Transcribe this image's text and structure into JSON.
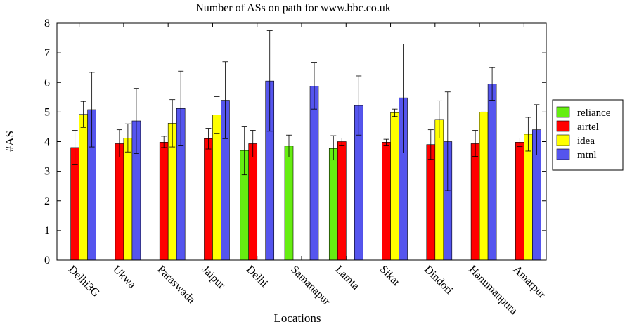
{
  "chart_data": {
    "type": "bar",
    "title": "Number of ASs on path for www.bbc.co.uk",
    "xlabel": "Locations",
    "ylabel": "#AS",
    "ylim": [
      0,
      8
    ],
    "yticks": [
      "0",
      "1",
      "2",
      "3",
      "4",
      "5",
      "6",
      "7",
      "8"
    ],
    "categories": [
      "Delhi3G",
      "Ukwa",
      "Paraswada",
      "Jaipur",
      "Delhi",
      "Samanapur",
      "Lamta",
      "Sikar",
      "Dindori",
      "Hanumanpura",
      "Amarpur"
    ],
    "legend_position": "right",
    "series": [
      {
        "name": "reliance",
        "color": "#66ee11",
        "values": [
          null,
          null,
          null,
          null,
          3.7,
          3.85,
          3.77,
          null,
          null,
          null,
          null
        ],
        "err_low": [
          null,
          null,
          null,
          null,
          2.88,
          3.48,
          3.38,
          null,
          null,
          null,
          null
        ],
        "err_high": [
          null,
          null,
          null,
          null,
          4.52,
          4.22,
          4.2,
          null,
          null,
          null,
          null
        ]
      },
      {
        "name": "airtel",
        "color": "#ff0000",
        "values": [
          3.8,
          3.93,
          3.98,
          4.1,
          3.93,
          null,
          4.0,
          3.98,
          3.9,
          3.93,
          3.98
        ],
        "err_low": [
          3.22,
          3.48,
          3.8,
          3.75,
          3.48,
          null,
          3.88,
          3.88,
          3.4,
          3.5,
          3.83
        ],
        "err_high": [
          4.38,
          4.4,
          4.18,
          4.45,
          4.38,
          null,
          4.12,
          4.08,
          4.4,
          4.38,
          4.12
        ]
      },
      {
        "name": "idea",
        "color": "#ffff00",
        "values": [
          4.92,
          4.12,
          4.62,
          4.9,
          null,
          null,
          null,
          4.98,
          4.75,
          5.0,
          4.25
        ],
        "err_low": [
          4.48,
          3.65,
          3.82,
          4.28,
          null,
          null,
          null,
          4.85,
          4.12,
          5.0,
          3.68
        ],
        "err_high": [
          5.36,
          4.6,
          5.42,
          5.52,
          null,
          null,
          null,
          5.1,
          5.38,
          5.0,
          4.82
        ]
      },
      {
        "name": "mtnl",
        "color": "#5555ee",
        "values": [
          5.08,
          4.7,
          5.12,
          5.4,
          6.05,
          5.88,
          5.22,
          5.48,
          4.0,
          5.95,
          4.4
        ],
        "err_low": [
          3.82,
          3.6,
          3.88,
          4.1,
          4.35,
          5.1,
          4.22,
          3.62,
          2.35,
          5.4,
          3.55
        ],
        "err_high": [
          6.34,
          5.8,
          6.38,
          6.7,
          7.75,
          6.68,
          6.22,
          7.3,
          5.68,
          6.5,
          5.25
        ]
      }
    ]
  }
}
